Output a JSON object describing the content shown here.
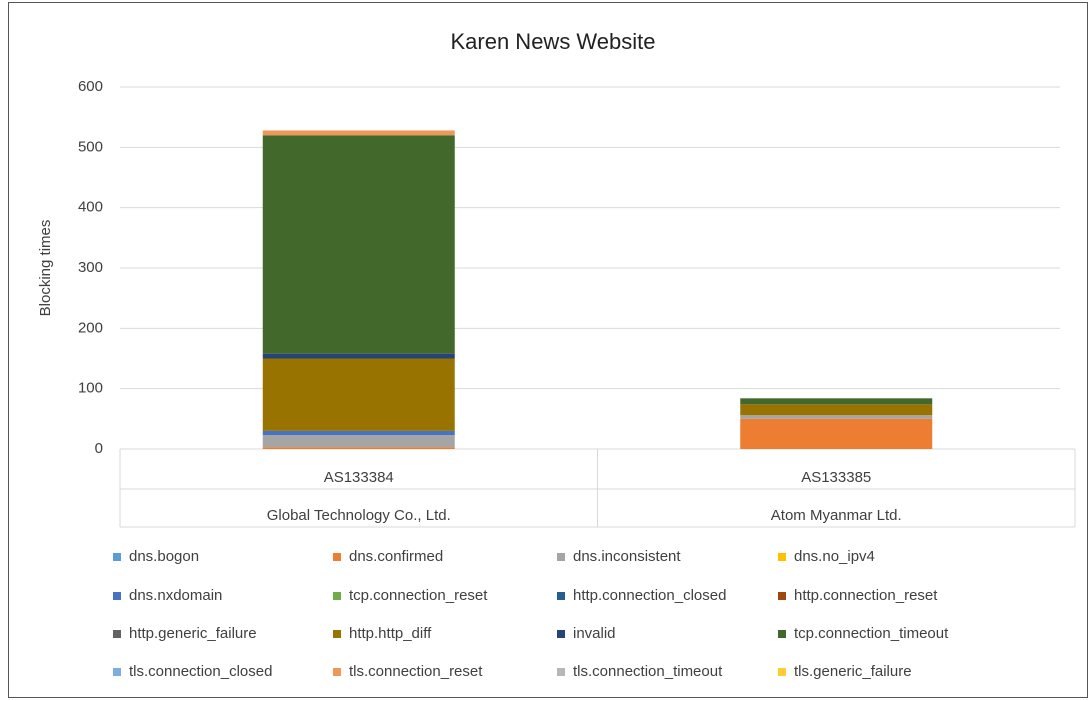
{
  "chart_data": {
    "type": "stacked_bar",
    "title": "Karen News Website",
    "y_label": "Blocking times",
    "categories": [
      "AS133384",
      "AS133385"
    ],
    "category_groups": [
      "Global Technology Co., Ltd.",
      "Atom Myanmar Ltd."
    ],
    "ylim": [
      0,
      600
    ],
    "yticks": [
      0,
      100,
      200,
      300,
      400,
      500,
      600
    ],
    "grid": true,
    "legend": "bottom",
    "series": [
      {
        "name": "dns.bogon",
        "color": "#5b9bd5",
        "values": [
          0,
          0
        ]
      },
      {
        "name": "dns.confirmed",
        "color": "#ed7d31",
        "values": [
          3,
          50
        ]
      },
      {
        "name": "dns.inconsistent",
        "color": "#a5a5a5",
        "values": [
          20,
          6
        ]
      },
      {
        "name": "dns.no_ipv4",
        "color": "#ffc000",
        "values": [
          0,
          0
        ]
      },
      {
        "name": "dns.nxdomain",
        "color": "#4472c4",
        "values": [
          7,
          0
        ]
      },
      {
        "name": "tcp.connection_reset",
        "color": "#70ad47",
        "values": [
          0,
          0
        ]
      },
      {
        "name": "http.connection_closed",
        "color": "#255e91",
        "values": [
          0,
          0
        ]
      },
      {
        "name": "http.connection_reset",
        "color": "#9e480e",
        "values": [
          0,
          0
        ]
      },
      {
        "name": "http.generic_failure",
        "color": "#636363",
        "values": [
          0,
          0
        ]
      },
      {
        "name": "http.http_diff",
        "color": "#997300",
        "values": [
          120,
          18
        ]
      },
      {
        "name": "invalid",
        "color": "#264478",
        "values": [
          8,
          0
        ]
      },
      {
        "name": "tcp.connection_timeout",
        "color": "#43682b",
        "values": [
          362,
          10
        ]
      },
      {
        "name": "tls.connection_closed",
        "color": "#7cafdd",
        "values": [
          0,
          0
        ]
      },
      {
        "name": "tls.connection_reset",
        "color": "#f1975a",
        "values": [
          8,
          0
        ]
      },
      {
        "name": "tls.connection_timeout",
        "color": "#b7b7b7",
        "values": [
          0,
          0
        ]
      },
      {
        "name": "tls.generic_failure",
        "color": "#ffcd33",
        "values": [
          0,
          0
        ]
      }
    ]
  }
}
